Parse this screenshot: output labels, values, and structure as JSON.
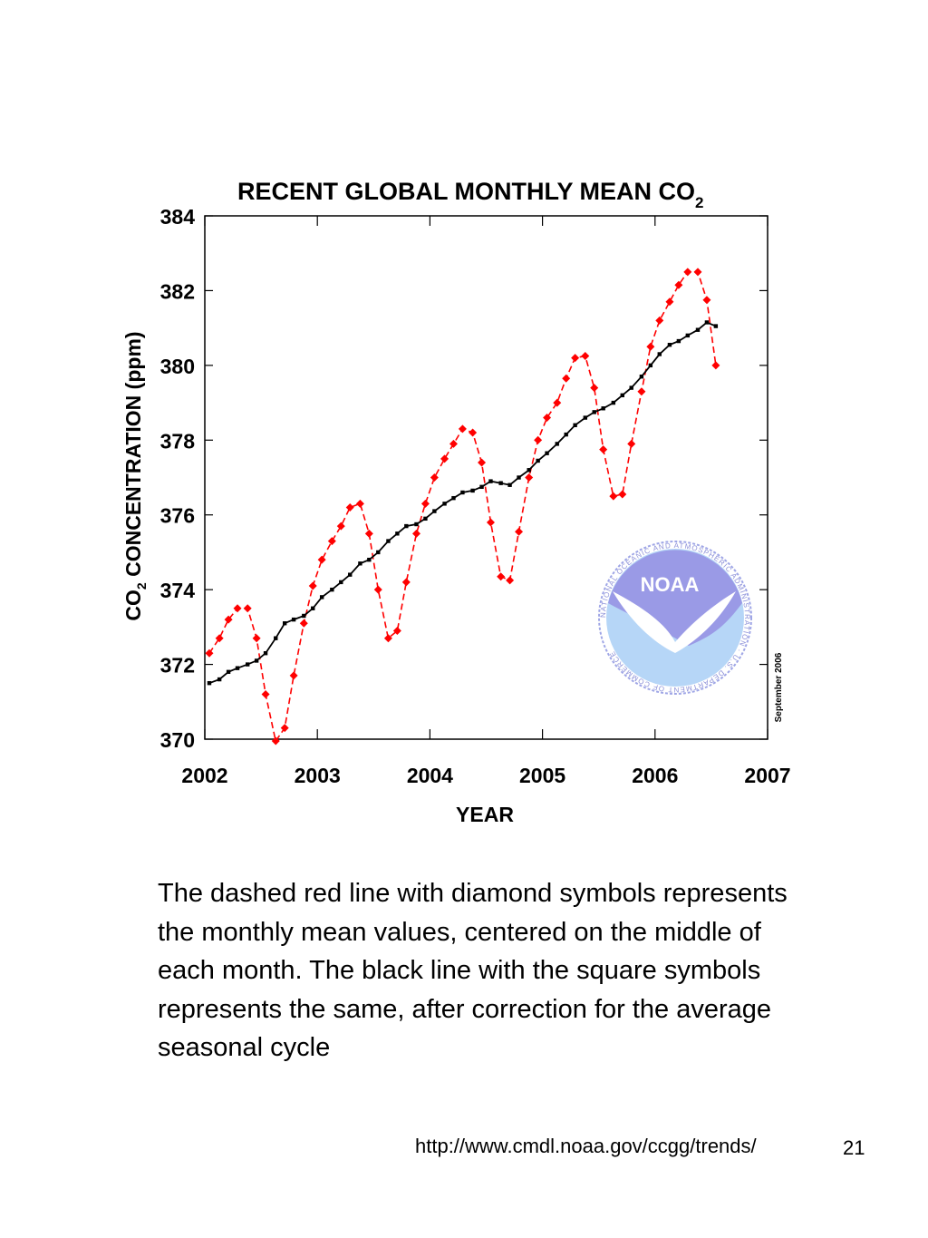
{
  "colors": {
    "monthly": "#ff0000",
    "corrected": "#000000",
    "noaa_dark": "#9a9ae6",
    "noaa_light": "#b6d6f7"
  },
  "chart_data": {
    "type": "line",
    "title_main": "RECENT GLOBAL MONTHLY MEAN CO",
    "title_sub": "2",
    "ylabel_pre": "CO",
    "ylabel_sub": "2",
    "ylabel_post": " CONCENTRATION (ppm)",
    "xlabel": "YEAR",
    "xlim": [
      2002,
      2007
    ],
    "ylim": [
      370,
      384
    ],
    "xticks": [
      2002,
      2003,
      2004,
      2005,
      2006,
      2007
    ],
    "yticks": [
      370,
      372,
      374,
      376,
      378,
      380,
      382,
      384
    ],
    "grid": false,
    "side_note": "September 2006",
    "logo": {
      "name": "noaa-logo",
      "wordmark": "NOAA",
      "ring_text": "NATIONAL OCEANIC AND ATMOSPHERIC ADMINISTRATION · U.S. DEPARTMENT OF COMMERCE"
    },
    "series": [
      {
        "key": "monthly",
        "marker": "diamond",
        "dashed": true,
        "x": [
          2002.04,
          2002.13,
          2002.21,
          2002.29,
          2002.38,
          2002.46,
          2002.54,
          2002.63,
          2002.71,
          2002.79,
          2002.88,
          2002.96,
          2003.04,
          2003.13,
          2003.21,
          2003.29,
          2003.38,
          2003.46,
          2003.54,
          2003.63,
          2003.71,
          2003.79,
          2003.88,
          2003.96,
          2004.04,
          2004.13,
          2004.21,
          2004.29,
          2004.38,
          2004.46,
          2004.54,
          2004.63,
          2004.71,
          2004.79,
          2004.88,
          2004.96,
          2005.04,
          2005.13,
          2005.21,
          2005.29,
          2005.38,
          2005.46,
          2005.54,
          2005.63,
          2005.71,
          2005.79,
          2005.88,
          2005.96,
          2006.04,
          2006.13,
          2006.21,
          2006.29,
          2006.38,
          2006.46,
          2006.54
        ],
        "values": [
          372.3,
          372.7,
          373.2,
          373.5,
          373.5,
          372.7,
          371.2,
          369.95,
          370.3,
          371.7,
          373.1,
          374.1,
          374.8,
          375.3,
          375.7,
          376.2,
          376.3,
          375.5,
          374.0,
          372.7,
          372.9,
          374.2,
          375.5,
          376.3,
          377.0,
          377.5,
          377.9,
          378.3,
          378.2,
          377.4,
          375.8,
          374.35,
          374.25,
          375.55,
          377.0,
          378.0,
          378.6,
          379.0,
          379.65,
          380.2,
          380.25,
          379.4,
          377.75,
          376.5,
          376.55,
          377.9,
          379.3,
          380.5,
          381.2,
          381.7,
          382.15,
          382.5,
          382.5,
          381.75,
          380.0
        ]
      },
      {
        "key": "corrected",
        "marker": "square",
        "dashed": false,
        "x": [
          2002.04,
          2002.13,
          2002.21,
          2002.29,
          2002.38,
          2002.46,
          2002.54,
          2002.63,
          2002.71,
          2002.79,
          2002.88,
          2002.96,
          2003.04,
          2003.13,
          2003.21,
          2003.29,
          2003.38,
          2003.46,
          2003.54,
          2003.63,
          2003.71,
          2003.79,
          2003.88,
          2003.96,
          2004.04,
          2004.13,
          2004.21,
          2004.29,
          2004.38,
          2004.46,
          2004.54,
          2004.63,
          2004.71,
          2004.79,
          2004.88,
          2004.96,
          2005.04,
          2005.13,
          2005.21,
          2005.29,
          2005.38,
          2005.46,
          2005.54,
          2005.63,
          2005.71,
          2005.79,
          2005.88,
          2005.96,
          2006.04,
          2006.13,
          2006.21,
          2006.29,
          2006.38,
          2006.46,
          2006.54
        ],
        "values": [
          371.5,
          371.6,
          371.8,
          371.9,
          372.0,
          372.1,
          372.3,
          372.7,
          373.1,
          373.2,
          373.3,
          373.5,
          373.8,
          374.0,
          374.2,
          374.4,
          374.7,
          374.8,
          375.0,
          375.3,
          375.5,
          375.7,
          375.75,
          375.9,
          376.1,
          376.3,
          376.45,
          376.6,
          376.65,
          376.75,
          376.9,
          376.85,
          376.8,
          377.0,
          377.2,
          377.45,
          377.65,
          377.9,
          378.15,
          378.4,
          378.6,
          378.75,
          378.85,
          379.0,
          379.2,
          379.4,
          379.7,
          380.0,
          380.3,
          380.55,
          380.65,
          380.8,
          380.95,
          381.15,
          381.05
        ]
      }
    ]
  },
  "caption": "The dashed red line with diamond symbols represents the monthly mean values, centered on the middle of each month. The black line with the square symbols represents the same, after correction for the average seasonal cycle",
  "footer": {
    "url": "http://www.cmdl.noaa.gov/ccgg/trends/",
    "page_number": "21"
  }
}
